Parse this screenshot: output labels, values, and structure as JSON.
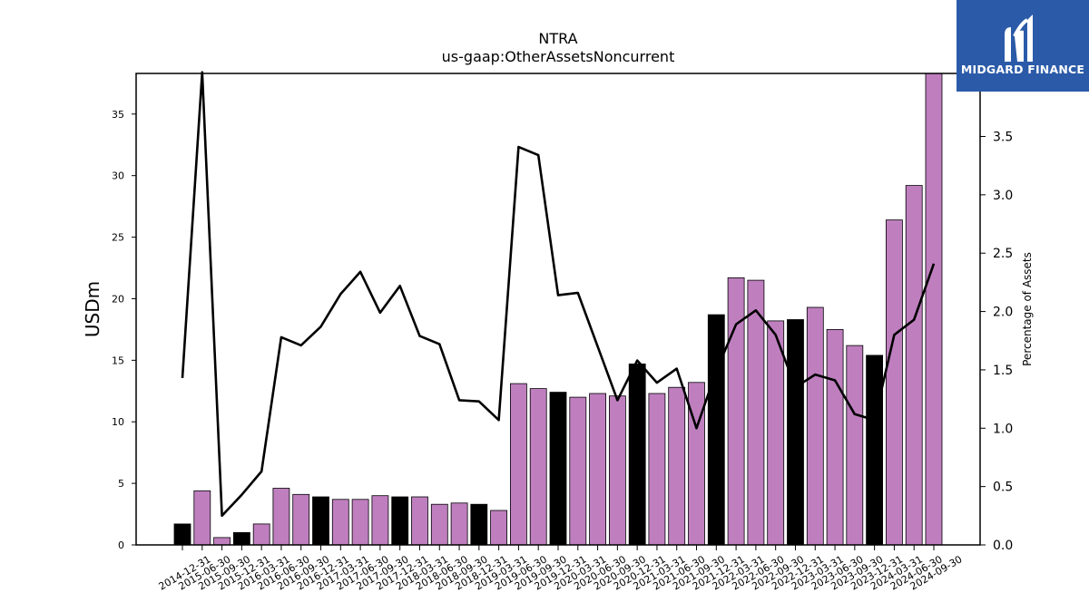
{
  "chart_data": {
    "type": "bar+line",
    "title": "NTRA",
    "subtitle": "us-gaap:OtherAssetsNoncurrent",
    "ylabel_left": "USDm",
    "ylabel_right": "Percentage of Assets",
    "ylim_left": [
      0,
      38.3
    ],
    "ylim_right": [
      0,
      4.04
    ],
    "yticks_left": [
      0,
      5,
      10,
      15,
      20,
      25,
      30,
      35
    ],
    "yticks_right": [
      0.0,
      0.5,
      1.0,
      1.5,
      2.0,
      2.5,
      3.0,
      3.5
    ],
    "colors": {
      "bar_q4": "#000000",
      "bar_other": "#bf7fbf",
      "line": "#000000"
    },
    "categories": [
      "2014-12-31",
      "2015-06-30",
      "2015-09-30",
      "2015-12-31",
      "2016-03-31",
      "2016-06-30",
      "2016-09-30",
      "2016-12-31",
      "2017-03-31",
      "2017-06-30",
      "2017-09-30",
      "2017-12-31",
      "2018-03-31",
      "2018-06-30",
      "2018-09-30",
      "2018-12-31",
      "2019-03-31",
      "2019-06-30",
      "2019-09-30",
      "2019-12-31",
      "2020-03-31",
      "2020-06-30",
      "2020-09-30",
      "2020-12-31",
      "2021-03-31",
      "2021-06-30",
      "2021-09-30",
      "2021-12-31",
      "2022-03-31",
      "2022-06-30",
      "2022-09-30",
      "2022-12-31",
      "2023-03-31",
      "2023-06-30",
      "2023-09-30",
      "2023-12-31",
      "2024-03-31",
      "2024-06-30",
      "2024-09-30"
    ],
    "series": [
      {
        "type": "bar",
        "values": [
          1.7,
          4.4,
          0.6,
          1.0,
          1.7,
          4.6,
          4.1,
          3.9,
          3.7,
          3.7,
          4.0,
          3.9,
          3.9,
          3.3,
          3.4,
          3.3,
          2.8,
          13.1,
          12.7,
          12.4,
          12.0,
          12.3,
          12.1,
          14.7,
          12.3,
          12.8,
          13.2,
          18.7,
          21.7,
          21.5,
          18.2,
          18.3,
          19.3,
          17.5,
          16.2,
          15.4,
          26.4,
          29.2,
          38.3
        ]
      },
      {
        "type": "line",
        "values": [
          1.43,
          4.05,
          0.25,
          0.43,
          0.63,
          1.78,
          1.71,
          1.87,
          2.15,
          2.34,
          1.99,
          2.22,
          1.79,
          1.72,
          1.24,
          1.23,
          1.07,
          3.41,
          3.34,
          2.14,
          2.16,
          1.7,
          1.24,
          1.58,
          1.39,
          1.51,
          1.0,
          1.49,
          1.89,
          2.01,
          1.8,
          1.35,
          1.46,
          1.41,
          1.12,
          1.07,
          1.8,
          1.93,
          2.41
        ]
      }
    ]
  },
  "logo": {
    "name": "MIDGARD FINANCE"
  }
}
